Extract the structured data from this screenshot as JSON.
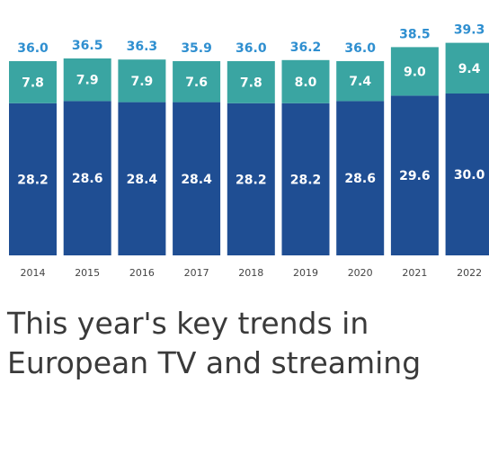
{
  "colors": {
    "bottom_segment": "#1f4e93",
    "top_segment": "#3aa5a2",
    "total_label": "#2f8fd0",
    "segment_label": "#ffffff",
    "year_label": "#444444",
    "headline": "#3a3a3a"
  },
  "chart_data": {
    "type": "bar",
    "stacked": true,
    "categories": [
      "2014",
      "2015",
      "2016",
      "2017",
      "2018",
      "2019",
      "2020",
      "2021",
      "2022"
    ],
    "series": [
      {
        "values": [
          28.2,
          28.6,
          28.4,
          28.4,
          28.2,
          28.2,
          28.6,
          29.6,
          30.0
        ]
      },
      {
        "values": [
          7.8,
          7.9,
          7.9,
          7.6,
          7.8,
          8.0,
          7.4,
          9.0,
          9.4
        ]
      }
    ],
    "totals": [
      36.0,
      36.5,
      36.3,
      35.9,
      36.0,
      36.2,
      36.0,
      38.5,
      39.3
    ],
    "legend": "none",
    "grid": false,
    "title": "",
    "xlabel": "",
    "ylabel": ""
  },
  "headline": {
    "line1": "This year's key trends in",
    "line2": "European TV and streaming"
  }
}
